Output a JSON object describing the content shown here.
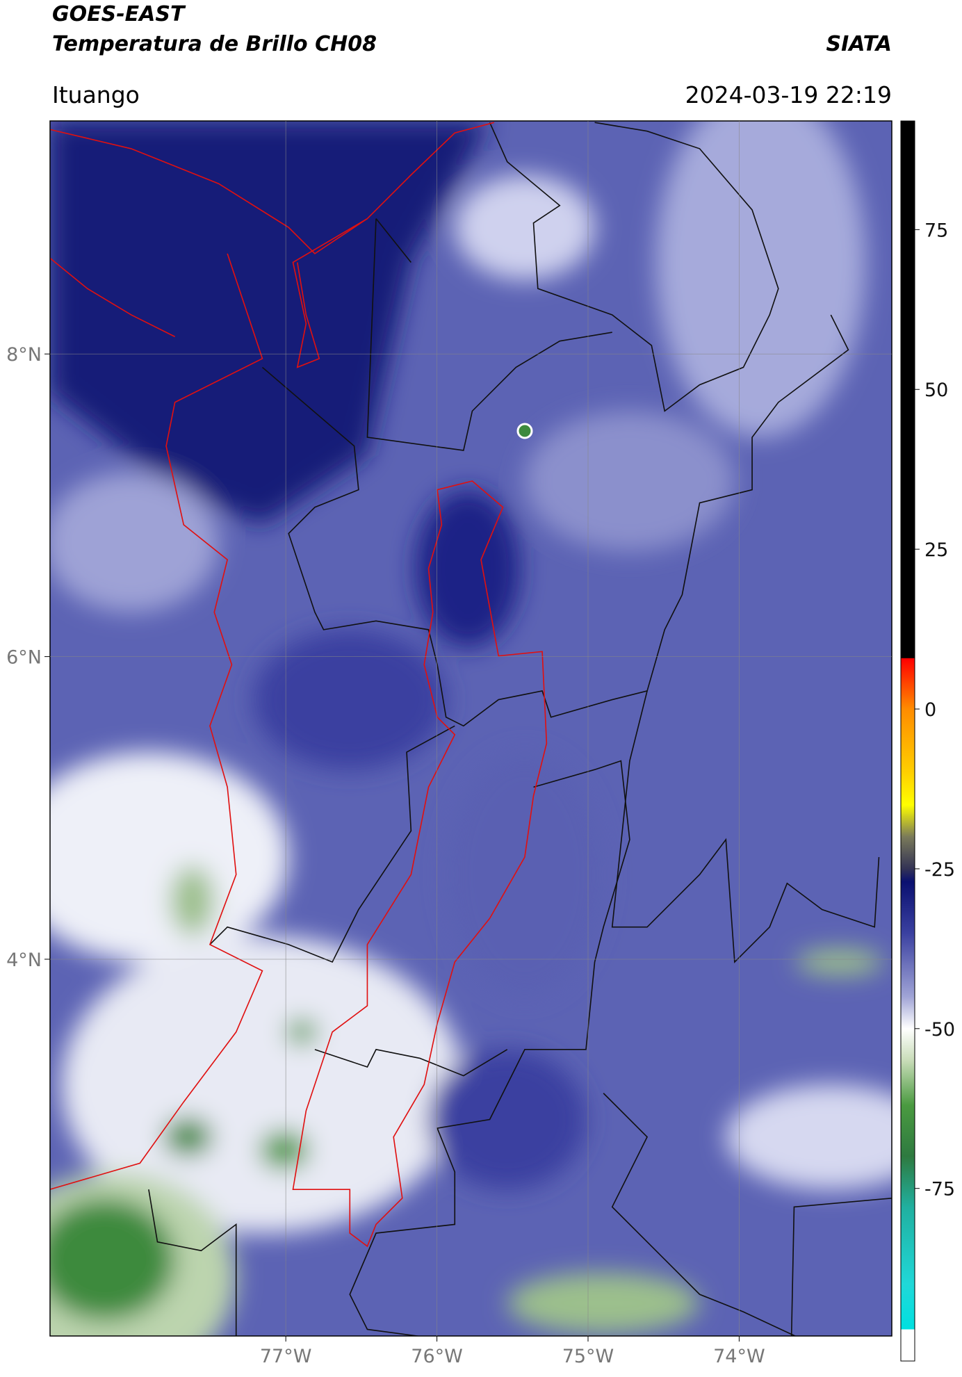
{
  "header": {
    "title": "GOES-EAST",
    "subtitle": "Temperatura de Brillo CH08",
    "organization": "SIATA",
    "location": "Ituango",
    "datetime": "2024-03-19 22:19"
  },
  "chart_data": {
    "type": "map",
    "xlim": [
      -78.56,
      -72.99
    ],
    "ylim": [
      1.51,
      9.54
    ],
    "xticks": [
      {
        "value": -77,
        "label": "77°W"
      },
      {
        "value": -76,
        "label": "76°W"
      },
      {
        "value": -75,
        "label": "75°W"
      },
      {
        "value": -74,
        "label": "74°W"
      }
    ],
    "yticks": [
      {
        "value": 8,
        "label": "8°N"
      },
      {
        "value": 6,
        "label": "6°N"
      },
      {
        "value": 4,
        "label": "4°N"
      }
    ],
    "grid": true,
    "colorbar": {
      "lim": [
        -102,
        92
      ],
      "ticks": [
        75,
        50,
        25,
        0,
        -25,
        -50,
        -75
      ],
      "colormap": [
        {
          "value": 92,
          "color": "#000000"
        },
        {
          "value": 8,
          "color": "#000000"
        },
        {
          "value": 7.9,
          "color": "#ff0000"
        },
        {
          "value": 0,
          "color": "#ff8c00"
        },
        {
          "value": -10,
          "color": "#ffd000"
        },
        {
          "value": -15,
          "color": "#ffff00"
        },
        {
          "value": -20,
          "color": "#7a7a5a"
        },
        {
          "value": -25,
          "color": "#333355"
        },
        {
          "value": -27,
          "color": "#0a1070"
        },
        {
          "value": -35,
          "color": "#3a40a0"
        },
        {
          "value": -45,
          "color": "#a0a4d6"
        },
        {
          "value": -50,
          "color": "#ffffff"
        },
        {
          "value": -55,
          "color": "#c8dcb8"
        },
        {
          "value": -62,
          "color": "#4a9a40"
        },
        {
          "value": -70,
          "color": "#2e7a40"
        },
        {
          "value": -78,
          "color": "#20b0a0"
        },
        {
          "value": -90,
          "color": "#20d8d8"
        },
        {
          "value": -97,
          "color": "#00e0e0"
        },
        {
          "value": -97.1,
          "color": "#ffffff"
        },
        {
          "value": -102,
          "color": "#ffffff"
        }
      ]
    }
  }
}
